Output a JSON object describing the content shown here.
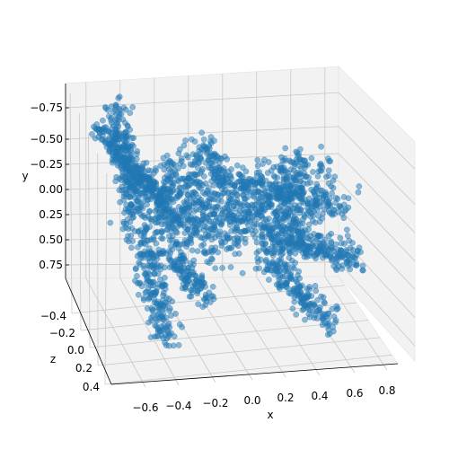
{
  "chart_data": {
    "type": "scatter",
    "projection": "3d",
    "title": "",
    "xlabel": "x",
    "ylabel": "y",
    "zlabel": "z",
    "x_ticks": [
      "−0.6",
      "−0.4",
      "−0.2",
      "0.0",
      "0.2",
      "0.4",
      "0.6",
      "0.8"
    ],
    "y_ticks": [
      "−0.75",
      "−0.50",
      "−0.25",
      "0.00",
      "0.25",
      "0.50",
      "0.75"
    ],
    "z_ticks": [
      "−0.4",
      "−0.2",
      "0.0",
      "0.2",
      "0.4"
    ],
    "xlim": [
      -0.72,
      0.92
    ],
    "ylim": [
      -0.98,
      0.98
    ],
    "zlim": [
      -0.5,
      0.5
    ],
    "y_inverted": true,
    "grid": true,
    "marker_color": "#1f77b4",
    "marker_alpha": 0.5,
    "pane_color": "#f2f2f2",
    "grid_color": "#c8c8c8"
  }
}
